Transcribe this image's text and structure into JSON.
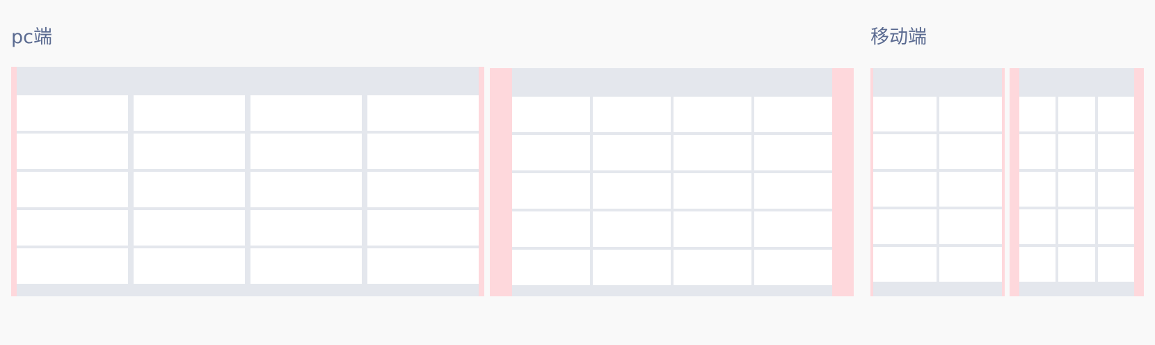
{
  "sections": {
    "pc_label": "pc端",
    "mobile_label": "移动端"
  },
  "layouts": [
    {
      "id": "pc-full-width",
      "columns": 4,
      "rows": 5
    },
    {
      "id": "pc-padded",
      "columns": 4,
      "rows": 5
    },
    {
      "id": "mobile-two-column",
      "columns": 2,
      "rows": 5
    },
    {
      "id": "mobile-three-column",
      "columns": 3,
      "rows": 5
    }
  ],
  "colors": {
    "background": "#f9f9f9",
    "panel": "#e4e7ed",
    "cell": "#ffffff",
    "padding": "#fed8dc",
    "label_text": "#5b6b91"
  }
}
